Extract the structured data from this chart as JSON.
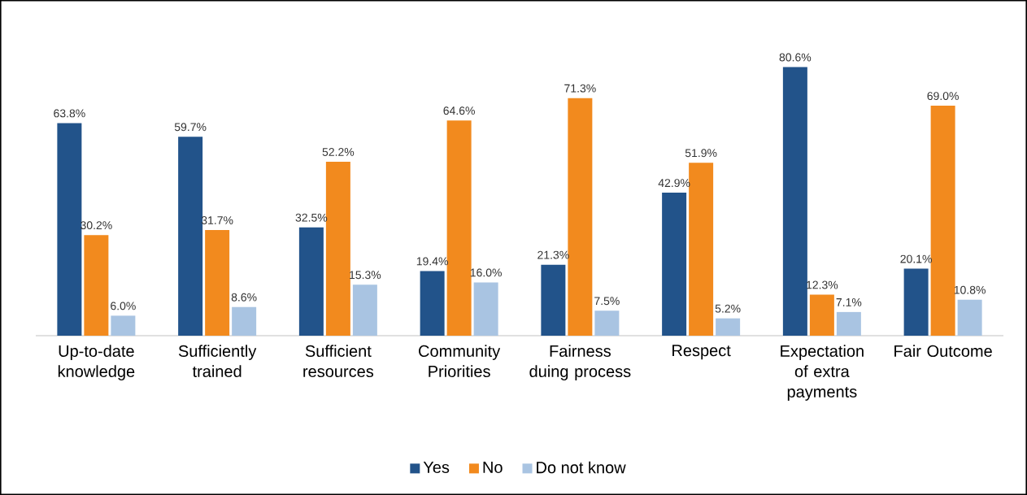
{
  "chart_data": {
    "type": "bar",
    "categories": [
      "Up-to-date knowledge",
      "Sufficiently trained",
      "Sufficient resources",
      "Community Priorities",
      "Fairness duing process",
      "Respect",
      "Expectation of extra payments",
      "Fair Outcome"
    ],
    "series": [
      {
        "name": "Yes",
        "color": "#22538a",
        "values": [
          63.8,
          59.7,
          32.5,
          19.4,
          21.3,
          42.9,
          80.6,
          20.1
        ],
        "value_labels": [
          "63.8%",
          "59.7%",
          "32.5%",
          "19.4%",
          "21.3%",
          "42.9%",
          "80.6%",
          "20.1%"
        ]
      },
      {
        "name": "No",
        "color": "#f28a1e",
        "values": [
          30.2,
          31.7,
          52.2,
          64.6,
          71.3,
          51.9,
          12.3,
          69.0
        ],
        "value_labels": [
          "30.2%",
          "31.7%",
          "52.2%",
          "64.6%",
          "71.3%",
          "51.9%",
          "12.3%",
          "69.0%"
        ]
      },
      {
        "name": "Do not know",
        "color": "#a9c4e2",
        "values": [
          6.0,
          8.6,
          15.3,
          16.0,
          7.5,
          5.2,
          7.1,
          10.8
        ],
        "value_labels": [
          "6.0%",
          "8.6%",
          "15.3%",
          "16.0%",
          "7.5%",
          "5.2%",
          "7.1%",
          "10.8%"
        ]
      }
    ],
    "legend": "bottom"
  }
}
